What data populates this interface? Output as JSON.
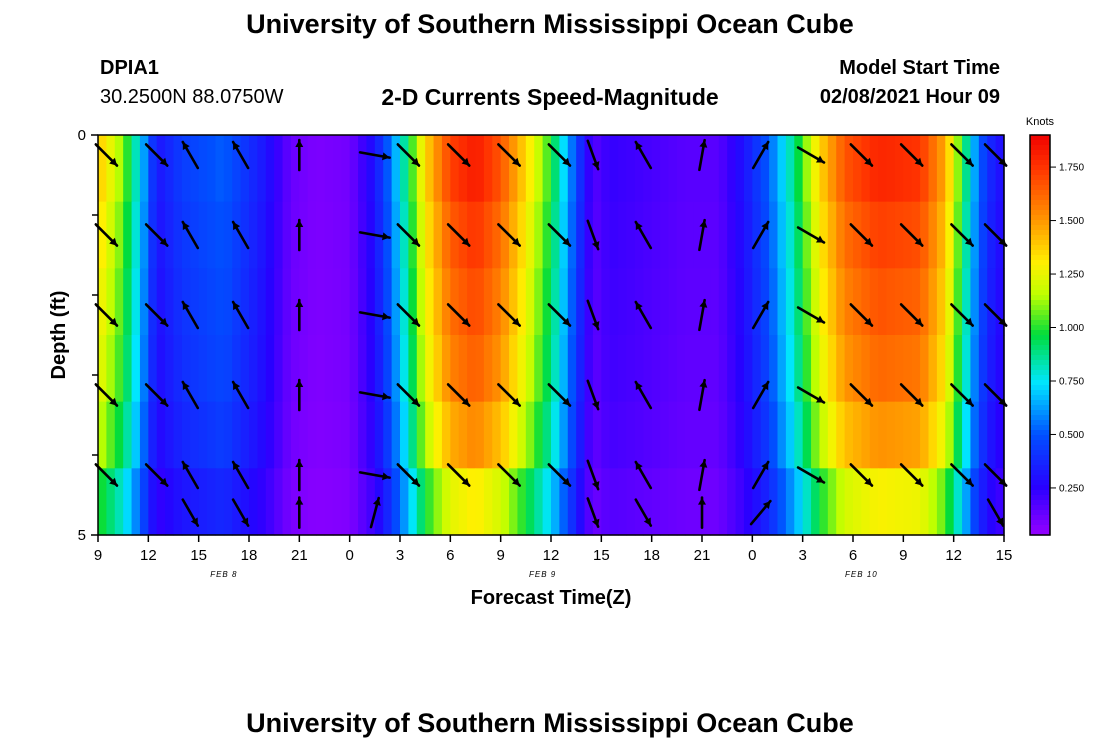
{
  "header": {
    "title": "University of Southern Mississippi Ocean Cube",
    "station": "DPIA1",
    "coords": "30.2500N 88.0750W",
    "chart_title": "2-D Currents Speed-Magnitude",
    "model_start_label": "Model Start Time",
    "model_start_value": "02/08/2021 Hour 09"
  },
  "footer": {
    "title": "University of Southern Mississippi Ocean Cube"
  },
  "chart_data": {
    "type": "heatmap",
    "title": "2-D Currents Speed-Magnitude",
    "xlabel": "Forecast Time(Z)",
    "ylabel": "Depth (ft)",
    "x_range_hours": [
      0,
      54
    ],
    "ylim": [
      0,
      5
    ],
    "x_ticks": [
      {
        "h": 0,
        "label": "9"
      },
      {
        "h": 3,
        "label": "12"
      },
      {
        "h": 6,
        "label": "15"
      },
      {
        "h": 9,
        "label": "18"
      },
      {
        "h": 12,
        "label": "21"
      },
      {
        "h": 15,
        "label": "0"
      },
      {
        "h": 18,
        "label": "3"
      },
      {
        "h": 21,
        "label": "6"
      },
      {
        "h": 24,
        "label": "9"
      },
      {
        "h": 27,
        "label": "12"
      },
      {
        "h": 30,
        "label": "15"
      },
      {
        "h": 33,
        "label": "18"
      },
      {
        "h": 36,
        "label": "21"
      },
      {
        "h": 39,
        "label": "0"
      },
      {
        "h": 42,
        "label": "3"
      },
      {
        "h": 45,
        "label": "6"
      },
      {
        "h": 48,
        "label": "9"
      },
      {
        "h": 51,
        "label": "12"
      },
      {
        "h": 54,
        "label": "15"
      }
    ],
    "date_labels": [
      {
        "h": 7.5,
        "label": "FEB 8"
      },
      {
        "h": 26.5,
        "label": "FEB 9"
      },
      {
        "h": 45.5,
        "label": "FEB 10"
      }
    ],
    "y_tick_labels": [
      {
        "v": 0,
        "label": "0"
      },
      {
        "v": 5,
        "label": "5"
      }
    ],
    "y_minor_ticks": [
      1,
      2,
      3,
      4
    ],
    "colorbar": {
      "label": "Knots",
      "min": 0.03,
      "max": 1.9,
      "ticks": [
        "0.250",
        "0.500",
        "0.750",
        "1.000",
        "1.250",
        "1.500",
        "1.750"
      ]
    },
    "speed_profile": [
      {
        "h": 0.0,
        "s": 1.35
      },
      {
        "h": 1.5,
        "s": 1.05
      },
      {
        "h": 2.5,
        "s": 0.7
      },
      {
        "h": 3.5,
        "s": 0.3
      },
      {
        "h": 5.0,
        "s": 0.42
      },
      {
        "h": 7.5,
        "s": 0.5
      },
      {
        "h": 10.0,
        "s": 0.3
      },
      {
        "h": 11.5,
        "s": 0.12
      },
      {
        "h": 13.0,
        "s": 0.08
      },
      {
        "h": 15.0,
        "s": 0.1
      },
      {
        "h": 16.5,
        "s": 0.3
      },
      {
        "h": 17.5,
        "s": 0.55
      },
      {
        "h": 18.5,
        "s": 0.9
      },
      {
        "h": 19.5,
        "s": 1.3
      },
      {
        "h": 21.0,
        "s": 1.65
      },
      {
        "h": 22.5,
        "s": 1.75
      },
      {
        "h": 24.0,
        "s": 1.6
      },
      {
        "h": 25.5,
        "s": 1.3
      },
      {
        "h": 27.0,
        "s": 0.95
      },
      {
        "h": 28.5,
        "s": 0.45
      },
      {
        "h": 29.5,
        "s": 0.15
      },
      {
        "h": 30.5,
        "s": 0.22
      },
      {
        "h": 32.0,
        "s": 0.2
      },
      {
        "h": 35.0,
        "s": 0.15
      },
      {
        "h": 37.0,
        "s": 0.15
      },
      {
        "h": 38.5,
        "s": 0.3
      },
      {
        "h": 40.0,
        "s": 0.5
      },
      {
        "h": 41.5,
        "s": 0.85
      },
      {
        "h": 43.0,
        "s": 1.3
      },
      {
        "h": 44.5,
        "s": 1.6
      },
      {
        "h": 46.5,
        "s": 1.72
      },
      {
        "h": 49.0,
        "s": 1.68
      },
      {
        "h": 50.5,
        "s": 1.4
      },
      {
        "h": 51.5,
        "s": 0.95
      },
      {
        "h": 52.5,
        "s": 0.5
      },
      {
        "h": 53.5,
        "s": 0.3
      },
      {
        "h": 54.0,
        "s": 0.28
      }
    ],
    "depth_factor": [
      1.04,
      1.0,
      0.97,
      0.94,
      0.88,
      0.75
    ],
    "vector_times": [
      0.5,
      3.5,
      5.5,
      8.5,
      12.0,
      16.5,
      18.5,
      21.5,
      24.5,
      27.5,
      29.5,
      32.5,
      36.0,
      39.5,
      42.5,
      45.5,
      48.5,
      51.5,
      53.5
    ],
    "vector_directions_deg": [
      135,
      135,
      330,
      330,
      0,
      100,
      135,
      135,
      135,
      135,
      160,
      330,
      10,
      30,
      120,
      135,
      135,
      135,
      135
    ],
    "vector_depths": [
      0.25,
      1.25,
      2.25,
      3.25,
      4.25
    ],
    "bottom_vector_directions_deg": [
      null,
      null,
      150,
      150,
      0,
      15,
      null,
      null,
      null,
      null,
      160,
      150,
      0,
      40,
      null,
      null,
      null,
      null,
      150
    ]
  }
}
